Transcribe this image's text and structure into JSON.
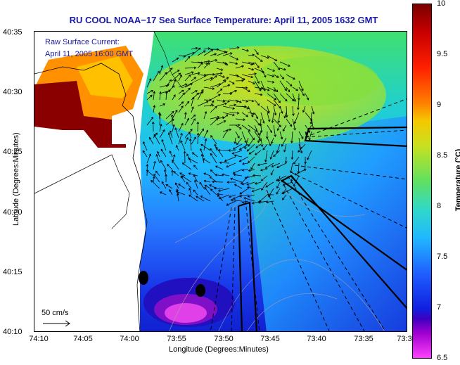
{
  "title": "RU COOL  NOAA−17  Sea Surface Temperature:  April 11, 2005 1632 GMT",
  "legend": {
    "line1": "Raw Surface Current:",
    "line2": "April 11, 2005 16:00 GMT"
  },
  "scale_label": "50 cm/s",
  "axes": {
    "x_title": "Longitude (Degrees:Minutes)",
    "y_title": "Latitude (Degrees:Minutes)",
    "x_ticks": [
      "74:10",
      "74:05",
      "74:00",
      "73:55",
      "73:50",
      "73:45",
      "73:40",
      "73:35",
      "73:3"
    ],
    "y_ticks": [
      "40:35",
      "40:30",
      "40:25",
      "40:20",
      "40:15",
      "40:10"
    ]
  },
  "colorbar": {
    "title": "Temperature (°C)",
    "ticks": [
      "10",
      "9.5",
      "9",
      "8.5",
      "8",
      "7.5",
      "7",
      "6.5"
    ],
    "min": 6.5,
    "max": 10
  },
  "colors": {
    "title": "#1a1aa8",
    "legend": "#1a1aa8"
  }
}
